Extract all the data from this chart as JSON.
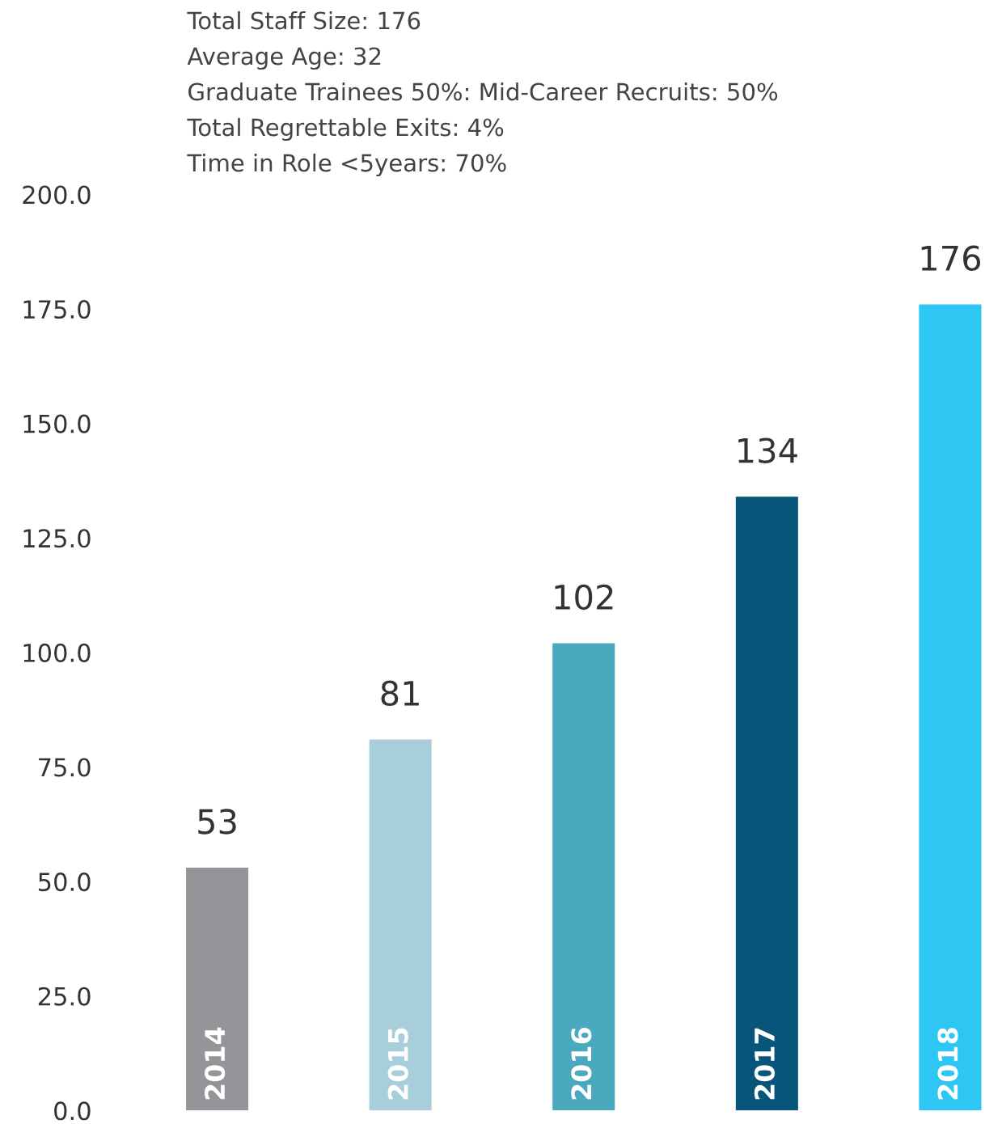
{
  "chart_data": {
    "type": "bar",
    "annotations": [
      "Total Staff Size: 176",
      "Average Age: 32",
      "Graduate Trainees 50%: Mid-Career Recruits: 50%",
      "Total Regrettable Exits: 4%",
      "Time in Role <5years: 70%"
    ],
    "categories": [
      "2014",
      "2015",
      "2016",
      "2017",
      "2018"
    ],
    "values": [
      53,
      81,
      102,
      134,
      176
    ],
    "colors": [
      "#949599",
      "#a8cedb",
      "#4aa9bf",
      "#075679",
      "#2ec6f3"
    ],
    "data_labels": true,
    "ylim": [
      0,
      200
    ],
    "yticks": [
      {
        "value": 0,
        "label": "0.0"
      },
      {
        "value": 25,
        "label": "25.0"
      },
      {
        "value": 50,
        "label": "50.0"
      },
      {
        "value": 75,
        "label": "75.0"
      },
      {
        "value": 100,
        "label": "100.0"
      },
      {
        "value": 125,
        "label": "125.0"
      },
      {
        "value": 150,
        "label": "150.0"
      },
      {
        "value": 175,
        "label": "175.0"
      },
      {
        "value": 200,
        "label": "200.0"
      }
    ],
    "grid": false,
    "legend": false
  }
}
